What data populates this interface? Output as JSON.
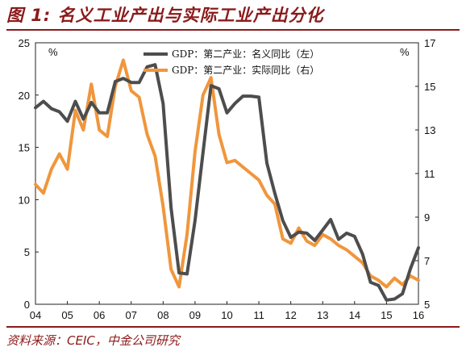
{
  "header": {
    "title": "图 1: 名义工业产出与实际工业产出分化"
  },
  "footer": {
    "source": "资料来源：CEIC，中金公司研究"
  },
  "colors": {
    "nominal": "#4d4d4d",
    "real": "#f0963c",
    "accent": "#8b1a1a"
  },
  "chart_data": {
    "type": "line",
    "title": "图 1: 名义工业产出与实际工业产出分化",
    "x_ticks": [
      "04",
      "05",
      "06",
      "07",
      "08",
      "09",
      "10",
      "11",
      "12",
      "13",
      "14",
      "15",
      "16"
    ],
    "xlim": [
      2004,
      2016
    ],
    "y_left": {
      "lim": [
        0,
        25
      ],
      "ticks": [
        0,
        5,
        10,
        15,
        20,
        25
      ],
      "unit": "%"
    },
    "y_right": {
      "lim": [
        5,
        17
      ],
      "ticks": [
        5,
        7,
        9,
        11,
        13,
        15,
        17
      ],
      "unit": "%"
    },
    "legend_position": "top-right",
    "grid": false,
    "series": [
      {
        "name": "GDP：第二产业：名义同比（左）",
        "axis": "left",
        "x": [
          2004.0,
          2004.25,
          2004.5,
          2004.75,
          2005.0,
          2005.25,
          2005.5,
          2005.75,
          2006.0,
          2006.25,
          2006.5,
          2006.75,
          2007.0,
          2007.25,
          2007.5,
          2007.75,
          2008.0,
          2008.25,
          2008.5,
          2008.75,
          2009.0,
          2009.25,
          2009.5,
          2009.75,
          2010.0,
          2010.25,
          2010.5,
          2010.75,
          2011.0,
          2011.25,
          2011.5,
          2011.75,
          2012.0,
          2012.25,
          2012.5,
          2012.75,
          2013.0,
          2013.25,
          2013.5,
          2013.75,
          2014.0,
          2014.25,
          2014.5,
          2014.75,
          2015.0,
          2015.25,
          2015.5,
          2015.75,
          2016.0
        ],
        "values": [
          18.8,
          19.4,
          18.7,
          18.4,
          17.5,
          19.4,
          17.7,
          19.3,
          18.3,
          18.3,
          21.3,
          21.6,
          21.2,
          21.2,
          22.7,
          22.9,
          19.2,
          9.2,
          3.0,
          2.9,
          8.0,
          14.5,
          20.9,
          20.6,
          18.3,
          19.2,
          19.9,
          19.9,
          19.8,
          13.5,
          10.6,
          8.0,
          6.4,
          6.9,
          6.8,
          6.1,
          7.1,
          8.1,
          6.2,
          6.8,
          6.5,
          4.8,
          2.1,
          1.8,
          0.4,
          0.5,
          1.0,
          3.4,
          5.4
        ]
      },
      {
        "name": "GDP：第二产业：实际同比（右）",
        "axis": "right",
        "x": [
          2004.0,
          2004.25,
          2004.5,
          2004.75,
          2005.0,
          2005.25,
          2005.5,
          2005.75,
          2006.0,
          2006.25,
          2006.5,
          2006.75,
          2007.0,
          2007.25,
          2007.5,
          2007.75,
          2008.0,
          2008.25,
          2008.5,
          2008.75,
          2009.0,
          2009.25,
          2009.5,
          2009.75,
          2010.0,
          2010.25,
          2010.5,
          2010.75,
          2011.0,
          2011.25,
          2011.5,
          2011.75,
          2012.0,
          2012.25,
          2012.5,
          2012.75,
          2013.0,
          2013.25,
          2013.5,
          2013.75,
          2014.0,
          2014.25,
          2014.5,
          2014.75,
          2015.0,
          2015.25,
          2015.5,
          2015.75,
          2016.0
        ],
        "values": [
          10.5,
          10.1,
          11.2,
          11.9,
          11.2,
          13.9,
          13.0,
          15.1,
          13.0,
          12.7,
          15.0,
          16.2,
          14.8,
          14.5,
          12.8,
          11.8,
          9.5,
          6.6,
          5.8,
          8.2,
          12.0,
          14.6,
          15.4,
          12.8,
          11.5,
          11.6,
          11.3,
          11.0,
          10.7,
          10.0,
          9.6,
          8.0,
          7.8,
          8.5,
          7.9,
          7.7,
          8.2,
          8.0,
          7.7,
          7.5,
          7.2,
          6.9,
          6.3,
          6.1,
          5.8,
          6.2,
          5.9,
          6.3,
          6.1
        ]
      }
    ]
  }
}
